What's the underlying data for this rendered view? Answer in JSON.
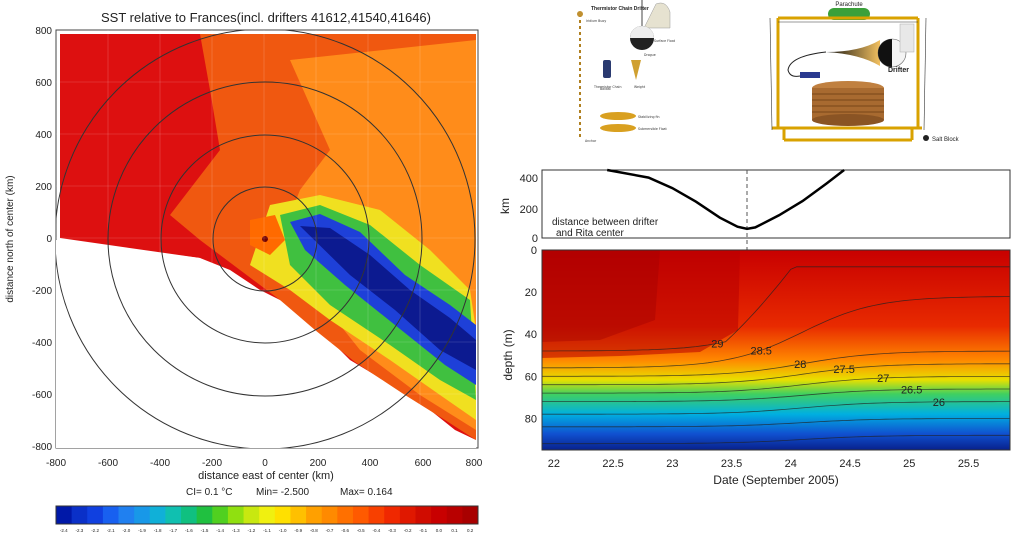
{
  "chart_data": [
    {
      "type": "heatmap",
      "title": "SST relative to Frances(incl. drifters 41612,41540,41646)",
      "xlabel": "distance east of center (km)",
      "ylabel": "distance north of center (km)",
      "xlim": [
        -800,
        800
      ],
      "ylim": [
        -800,
        800
      ],
      "x_ticks": [
        "-800",
        "-600",
        "-400",
        "-200",
        "0",
        "200",
        "400",
        "600",
        "800"
      ],
      "y_ticks": [
        "800",
        "600",
        "400",
        "200",
        "0",
        "-200",
        "-400",
        "-600",
        "-800"
      ],
      "range_rings_km": [
        200,
        400,
        600,
        800
      ],
      "stats": {
        "ci": "CI=  0.1 °C",
        "min": "Min=  -2.500",
        "max": "Max=  0.164"
      },
      "colorbar_labels": [
        "-2.4",
        "-2.3",
        "-2.2",
        "-2.1",
        "-2.0",
        "-1.9",
        "-1.8",
        "-1.7",
        "-1.6",
        "-1.5",
        "-1.4",
        "-1.3",
        "-1.2",
        "-1.1",
        "-1.0",
        "-0.9",
        "-0.8",
        "-0.7",
        "-0.6",
        "-0.5",
        "-0.4",
        "-0.3",
        "-0.2",
        "-0.1",
        "0.0",
        "0.1",
        "0.2"
      ]
    },
    {
      "type": "line",
      "title": "distance between drifter and Rita center",
      "ylabel": "km",
      "ylim": [
        0,
        450
      ],
      "y_ticks": [
        "400",
        "200",
        "0"
      ],
      "x": [
        22.45,
        22.8,
        23.0,
        23.2,
        23.4,
        23.55,
        23.63,
        23.7,
        23.9,
        24.1,
        24.3,
        24.45
      ],
      "y": [
        450,
        400,
        330,
        240,
        135,
        75,
        60,
        70,
        150,
        245,
        360,
        450
      ],
      "marker_date": 23.63
    },
    {
      "type": "heatmap",
      "xlabel": "Date (September 2005)",
      "ylabel": "depth (m)",
      "xlim": [
        21.9,
        25.85
      ],
      "ylim": [
        95,
        0
      ],
      "x_ticks": [
        "22",
        "22.5",
        "23",
        "23.5",
        "24",
        "24.5",
        "25",
        "25.5"
      ],
      "y_ticks": [
        "0",
        "20",
        "40",
        "60",
        "80"
      ],
      "contour_labels": [
        "29",
        "28.5",
        "28",
        "27.5",
        "27",
        "26.5",
        "26"
      ]
    }
  ],
  "diagram_left": {
    "title": "Thermistor Chain Drifter",
    "labels": [
      "Iridium Buoy",
      "Surface Float",
      "Drogue",
      "Thermistor Chain",
      "Ballast",
      "Weight",
      "Stabilizing fin",
      "Submersible Float",
      "Anchor"
    ]
  },
  "diagram_right": {
    "parachute": "Parachute",
    "drifter": "Drifter",
    "salt_block": "Salt Block"
  },
  "colors": {
    "warm": "#d40000",
    "cold": "#1a2bd0",
    "frame": "#d9a200",
    "parachute": "#3aa03a"
  }
}
